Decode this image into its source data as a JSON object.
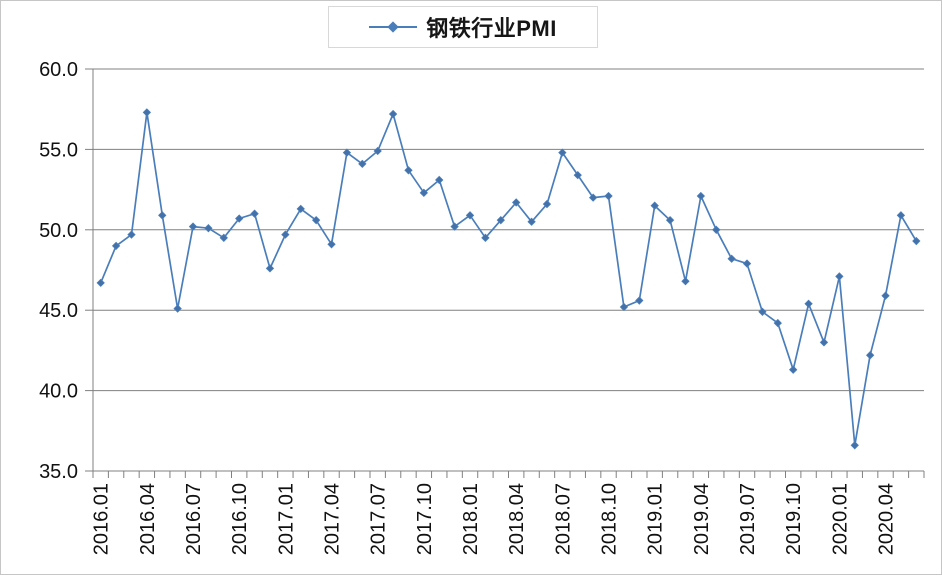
{
  "window": {
    "background": "#ffffff"
  },
  "colors": {
    "series_line": "#4a7ebb",
    "marker_fill": "#4472a8",
    "gridline": "#808080",
    "axis": "#808080",
    "tick": "#808080",
    "label_text": "#111111",
    "chart_border": "#c6c6c6",
    "legend_border": "#d8d8d8"
  },
  "chart_data": {
    "type": "line",
    "title": "钢铁行业PMI",
    "legend": {
      "position": "top",
      "entries": [
        "钢铁行业PMI"
      ]
    },
    "grid": true,
    "marker": "diamond",
    "xlabel": "",
    "ylabel": "",
    "ylim": [
      35.0,
      60.0
    ],
    "y_ticks": [
      35.0,
      40.0,
      45.0,
      50.0,
      55.0,
      60.0
    ],
    "y_tick_labels": [
      "35.0",
      "40.0",
      "45.0",
      "50.0",
      "55.0",
      "60.0"
    ],
    "x_label_every": 3,
    "x": [
      "2016.01",
      "2016.02",
      "2016.03",
      "2016.04",
      "2016.05",
      "2016.06",
      "2016.07",
      "2016.08",
      "2016.09",
      "2016.10",
      "2016.11",
      "2016.12",
      "2017.01",
      "2017.02",
      "2017.03",
      "2017.04",
      "2017.05",
      "2017.06",
      "2017.07",
      "2017.08",
      "2017.09",
      "2017.10",
      "2017.11",
      "2017.12",
      "2018.01",
      "2018.02",
      "2018.03",
      "2018.04",
      "2018.05",
      "2018.06",
      "2018.07",
      "2018.08",
      "2018.09",
      "2018.10",
      "2018.11",
      "2018.12",
      "2019.01",
      "2019.02",
      "2019.03",
      "2019.04",
      "2019.05",
      "2019.06",
      "2019.07",
      "2019.08",
      "2019.09",
      "2019.10",
      "2019.11",
      "2019.12",
      "2020.01",
      "2020.02",
      "2020.03",
      "2020.04",
      "2020.05",
      "2020.06"
    ],
    "series": [
      {
        "name": "钢铁行业PMI",
        "color": "#4a7ebb",
        "values": [
          46.7,
          49.0,
          49.7,
          57.3,
          50.9,
          45.1,
          50.2,
          50.1,
          49.5,
          50.7,
          51.0,
          47.6,
          49.7,
          51.3,
          50.6,
          49.1,
          54.8,
          54.1,
          54.9,
          57.2,
          53.7,
          52.3,
          53.1,
          50.2,
          50.9,
          49.5,
          50.6,
          51.7,
          50.5,
          51.6,
          54.8,
          53.4,
          52.0,
          52.1,
          45.2,
          45.6,
          51.5,
          50.6,
          46.8,
          52.1,
          50.0,
          48.2,
          47.9,
          44.9,
          44.2,
          41.3,
          45.4,
          43.0,
          47.1,
          36.6,
          42.2,
          45.9,
          50.9,
          49.3
        ]
      }
    ]
  }
}
